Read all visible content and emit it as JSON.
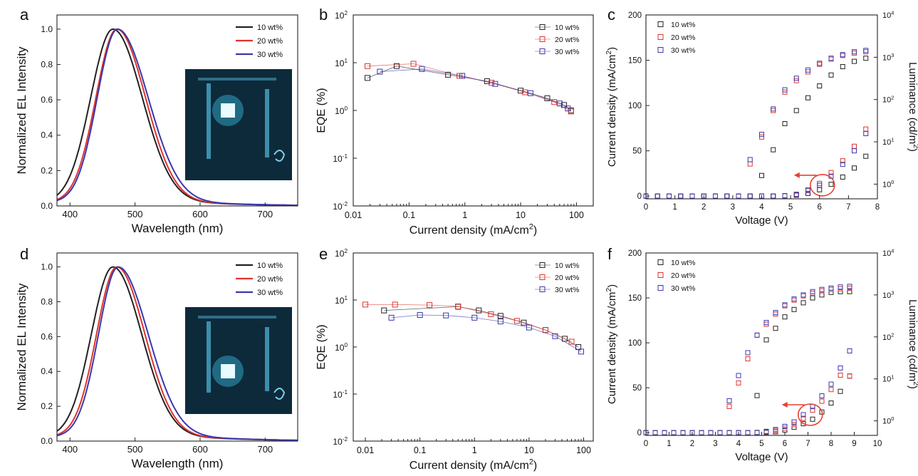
{
  "figure": {
    "background": "#ffffff"
  },
  "colors": {
    "10 wt%": "#222222",
    "20 wt%": "#e0332b",
    "30 wt%": "#3838b0",
    "annotation": "#e8412f"
  },
  "chart_data": [
    {
      "id": "a",
      "panel_label": "a",
      "type": "line",
      "xlabel": "Wavelength (nm)",
      "ylabel": "Normalized EL Intensity",
      "xlim": [
        380,
        750
      ],
      "ylim": [
        0,
        1.08
      ],
      "xticks": [
        400,
        500,
        600,
        700
      ],
      "xtick_labels": [
        "400",
        "500",
        "600",
        "700"
      ],
      "yticks": [
        0,
        0.2,
        0.4,
        0.6,
        0.8,
        1.0
      ],
      "ytick_labels": [
        "0.0",
        "0.2",
        "0.4",
        "0.6",
        "0.8",
        "1.0"
      ],
      "legend": "top-right",
      "inset": "device photo",
      "series": [
        {
          "name": "10 wt%",
          "peak": 466,
          "sigma_left": 34,
          "sigma_right": 45,
          "tail": 0.025
        },
        {
          "name": "20 wt%",
          "peak": 472,
          "sigma_left": 32,
          "sigma_right": 44,
          "tail": 0.025
        },
        {
          "name": "30 wt%",
          "peak": 473,
          "sigma_left": 31,
          "sigma_right": 47,
          "tail": 0.025
        }
      ]
    },
    {
      "id": "b",
      "panel_label": "b",
      "type": "line",
      "xlabel": "Current density (mA/cm",
      "xlabel_sup": "2",
      "xlabel_end": ")",
      "ylabel": "EQE (%)",
      "xscale": "log",
      "yscale": "log",
      "xlim": [
        0.01,
        200
      ],
      "ylim": [
        0.01,
        100
      ],
      "xticks": [
        0.01,
        0.1,
        1,
        10,
        100
      ],
      "xtick_labels": [
        "0.01",
        "0.1",
        "1",
        "10",
        "100"
      ],
      "yticks": [
        0.01,
        0.1,
        1,
        10,
        100
      ],
      "ytick_labels": [
        [
          "10",
          "-2"
        ],
        [
          "10",
          "-1"
        ],
        [
          "10",
          "0"
        ],
        [
          "10",
          "1"
        ],
        [
          "10",
          "2"
        ]
      ],
      "legend": "top-right",
      "series": [
        {
          "name": "10 wt%",
          "x": [
            0.018,
            0.06,
            0.5,
            2.5,
            10,
            30,
            60,
            80
          ],
          "y": [
            4.8,
            8.5,
            5.6,
            4.1,
            2.6,
            1.8,
            1.3,
            1.0
          ]
        },
        {
          "name": "20 wt%",
          "x": [
            0.018,
            0.12,
            0.8,
            3,
            12,
            40,
            80
          ],
          "y": [
            8.5,
            9.5,
            5.3,
            3.8,
            2.4,
            1.5,
            0.95
          ]
        },
        {
          "name": "30 wt%",
          "x": [
            0.03,
            0.17,
            0.9,
            3.5,
            15,
            50,
            70
          ],
          "y": [
            6.5,
            7.4,
            5.3,
            3.6,
            2.3,
            1.4,
            1.1
          ]
        }
      ]
    },
    {
      "id": "c",
      "panel_label": "c",
      "type": "scatter",
      "xlabel": "Voltage (V)",
      "ylabel": "Current density (mA/cm",
      "ylabel_sup": "2",
      "ylabel_end": ")",
      "y2label": "Luminance (cd/m",
      "y2label_sup": "2",
      "y2label_end": ")",
      "xlim": [
        0,
        8
      ],
      "ylim": [
        -3,
        200
      ],
      "y2lim": [
        0.45,
        10000
      ],
      "y2scale": "log",
      "xticks": [
        0,
        1,
        2,
        3,
        4,
        5,
        6,
        7,
        8
      ],
      "xtick_labels": [
        "0",
        "1",
        "2",
        "3",
        "4",
        "5",
        "6",
        "7",
        "8"
      ],
      "yticks": [
        0,
        50,
        100,
        150,
        200
      ],
      "ytick_labels": [
        "0",
        "50",
        "100",
        "150",
        "200"
      ],
      "y2ticks": [
        1,
        10,
        100,
        1000,
        10000
      ],
      "y2tick_labels": [
        [
          "10",
          "0"
        ],
        [
          "10",
          "1"
        ],
        [
          "10",
          "2"
        ],
        [
          "10",
          "3"
        ],
        [
          "10",
          "4"
        ]
      ],
      "legend": "top-left",
      "annotation": {
        "type": "circle-arrow",
        "x": 6.1,
        "y": 12,
        "points_to": "left axis"
      },
      "series": [
        {
          "name": "10 wt%",
          "voltage": [
            0,
            0.4,
            0.8,
            1.2,
            1.6,
            2.0,
            2.4,
            2.8,
            3.2,
            3.6,
            4.0,
            4.4,
            4.8,
            5.2,
            5.6,
            6.0,
            6.4,
            6.8,
            7.2,
            7.6
          ],
          "current_density": [
            0,
            0,
            0,
            0,
            0,
            0,
            0,
            0,
            0,
            0,
            0,
            0,
            0.3,
            1,
            3,
            7,
            13,
            21,
            31,
            44
          ],
          "luminance": [
            null,
            null,
            null,
            null,
            null,
            null,
            null,
            null,
            null,
            null,
            1.6,
            6.5,
            27,
            55,
            110,
            210,
            380,
            600,
            800,
            950
          ]
        },
        {
          "name": "20 wt%",
          "voltage": [
            0,
            0.4,
            0.8,
            1.2,
            1.6,
            2.0,
            2.4,
            2.8,
            3.2,
            3.6,
            4.0,
            4.4,
            4.8,
            5.2,
            5.6,
            6.0,
            6.4,
            6.8,
            7.2,
            7.6
          ],
          "current_density": [
            0,
            0,
            0,
            0,
            0,
            0,
            0,
            0,
            0,
            0,
            0,
            0,
            0.5,
            2,
            7,
            14,
            26,
            39,
            55,
            74
          ],
          "luminance": [
            null,
            null,
            null,
            null,
            null,
            null,
            null,
            null,
            null,
            3.0,
            13,
            55,
            150,
            280,
            450,
            680,
            900,
            1100,
            1250,
            1350
          ]
        },
        {
          "name": "30 wt%",
          "voltage": [
            0,
            0.4,
            0.8,
            1.2,
            1.6,
            2.0,
            2.4,
            2.8,
            3.2,
            3.6,
            4.0,
            4.4,
            4.8,
            5.2,
            5.6,
            6.0,
            6.4,
            6.8,
            7.2,
            7.6
          ],
          "current_density": [
            0,
            0,
            0,
            0,
            0,
            0,
            0,
            0,
            0,
            0,
            0,
            0,
            0.4,
            1.8,
            6,
            12,
            22,
            35,
            50,
            69
          ],
          "luminance": [
            null,
            null,
            null,
            null,
            null,
            null,
            null,
            null,
            null,
            3.8,
            15,
            60,
            170,
            320,
            500,
            720,
            950,
            1150,
            1350,
            1450
          ]
        }
      ]
    },
    {
      "id": "d",
      "panel_label": "d",
      "type": "line",
      "xlabel": "Wavelength (nm)",
      "ylabel": "Normalized EL Intensity",
      "xlim": [
        380,
        750
      ],
      "ylim": [
        0,
        1.08
      ],
      "xticks": [
        400,
        500,
        600,
        700
      ],
      "xtick_labels": [
        "400",
        "500",
        "600",
        "700"
      ],
      "yticks": [
        0,
        0.2,
        0.4,
        0.6,
        0.8,
        1.0
      ],
      "ytick_labels": [
        "0.0",
        "0.2",
        "0.4",
        "0.6",
        "0.8",
        "1.0"
      ],
      "legend": "top-right",
      "inset": "device photo",
      "series": [
        {
          "name": "10 wt%",
          "peak": 466,
          "sigma_left": 33,
          "sigma_right": 44,
          "tail": 0.03
        },
        {
          "name": "20 wt%",
          "peak": 472,
          "sigma_left": 31,
          "sigma_right": 43,
          "tail": 0.03
        },
        {
          "name": "30 wt%",
          "peak": 474,
          "sigma_left": 30,
          "sigma_right": 46,
          "tail": 0.03
        }
      ]
    },
    {
      "id": "e",
      "panel_label": "e",
      "type": "line",
      "xlabel": "Current density (mA/cm",
      "xlabel_sup": "2",
      "xlabel_end": ")",
      "ylabel": "EQE (%)",
      "xscale": "log",
      "yscale": "log",
      "xlim": [
        0.006,
        150
      ],
      "ylim": [
        0.01,
        100
      ],
      "xticks": [
        0.01,
        0.1,
        1,
        10,
        100
      ],
      "xtick_labels": [
        "0.01",
        "0.1",
        "1",
        "10",
        "100"
      ],
      "yticks": [
        0.01,
        0.1,
        1,
        10,
        100
      ],
      "ytick_labels": [
        [
          "10",
          "-2"
        ],
        [
          "10",
          "-1"
        ],
        [
          "10",
          "0"
        ],
        [
          "10",
          "1"
        ],
        [
          "10",
          "2"
        ]
      ],
      "legend": "top-right",
      "series": [
        {
          "name": "10 wt%",
          "x": [
            0.022,
            0.5,
            1.2,
            3,
            8,
            20,
            45,
            80
          ],
          "y": [
            6.0,
            7.2,
            6.0,
            4.6,
            3.3,
            2.3,
            1.5,
            1.0
          ]
        },
        {
          "name": "20 wt%",
          "x": [
            0.01,
            0.035,
            0.15,
            0.5,
            2,
            6,
            20,
            60
          ],
          "y": [
            8.0,
            8.0,
            7.8,
            7.3,
            5.0,
            3.6,
            2.3,
            1.3
          ]
        },
        {
          "name": "30 wt%",
          "x": [
            0.03,
            0.1,
            0.3,
            1,
            3,
            10,
            30,
            90
          ],
          "y": [
            4.2,
            4.8,
            4.7,
            4.2,
            3.5,
            2.6,
            1.7,
            0.8
          ]
        }
      ]
    },
    {
      "id": "f",
      "panel_label": "f",
      "type": "scatter",
      "xlabel": "Voltage (V)",
      "ylabel": "Current density (mA/cm",
      "ylabel_sup": "2",
      "ylabel_end": ")",
      "y2label": "Luminance (cd/m",
      "y2label_sup": "2",
      "y2label_end": ")",
      "xlim": [
        0,
        10
      ],
      "ylim": [
        -3,
        200
      ],
      "y2lim": [
        0.45,
        10000
      ],
      "y2scale": "log",
      "xticks": [
        0,
        1,
        2,
        3,
        4,
        5,
        6,
        7,
        8,
        9,
        10
      ],
      "xtick_labels": [
        "0",
        "1",
        "2",
        "3",
        "4",
        "5",
        "6",
        "7",
        "8",
        "9",
        "10"
      ],
      "yticks": [
        0,
        50,
        100,
        150,
        200
      ],
      "ytick_labels": [
        "0",
        "50",
        "100",
        "150",
        "200"
      ],
      "y2ticks": [
        1,
        10,
        100,
        1000,
        10000
      ],
      "y2tick_labels": [
        [
          "10",
          "0"
        ],
        [
          "10",
          "1"
        ],
        [
          "10",
          "2"
        ],
        [
          "10",
          "3"
        ],
        [
          "10",
          "4"
        ]
      ],
      "legend": "top-left",
      "annotation": {
        "type": "circle-arrow",
        "x": 7.1,
        "y": 20,
        "points_to": "left axis"
      },
      "series": [
        {
          "name": "10 wt%",
          "voltage": [
            0,
            0.4,
            0.8,
            1.2,
            1.6,
            2.0,
            2.4,
            2.8,
            3.2,
            3.6,
            4.0,
            4.4,
            4.8,
            5.2,
            5.6,
            6.0,
            6.4,
            6.8,
            7.2,
            7.6,
            8.0,
            8.4,
            8.8
          ],
          "current_density": [
            0,
            0,
            0,
            0,
            0,
            0,
            0,
            0,
            0,
            0,
            0,
            0,
            0,
            0.3,
            1,
            3,
            6,
            10,
            15,
            23,
            33,
            46,
            63
          ],
          "luminance": [
            null,
            null,
            null,
            null,
            null,
            null,
            null,
            null,
            null,
            null,
            null,
            null,
            4.0,
            85,
            160,
            300,
            450,
            650,
            850,
            1000,
            1150,
            1200,
            1200
          ]
        },
        {
          "name": "20 wt%",
          "voltage": [
            0,
            0.4,
            0.8,
            1.2,
            1.6,
            2.0,
            2.4,
            2.8,
            3.2,
            3.6,
            4.0,
            4.4,
            4.8,
            5.2,
            5.6,
            6.0,
            6.4,
            6.8,
            7.2,
            7.6,
            8.0,
            8.4,
            8.8
          ],
          "current_density": [
            0,
            0,
            0,
            0,
            0,
            0,
            0,
            0,
            0,
            0,
            0,
            0,
            0.2,
            1,
            2.5,
            5,
            9,
            16,
            25,
            35,
            48,
            64,
            63
          ],
          "luminance": [
            null,
            null,
            null,
            null,
            null,
            null,
            null,
            null,
            null,
            2.2,
            8,
            30,
            110,
            200,
            350,
            550,
            750,
            950,
            1100,
            1250,
            1350,
            1400,
            1450
          ]
        },
        {
          "name": "30 wt%",
          "voltage": [
            0,
            0.4,
            0.8,
            1.2,
            1.6,
            2.0,
            2.4,
            2.8,
            3.2,
            3.6,
            4.0,
            4.4,
            4.8,
            5.2,
            5.6,
            6.0,
            6.4,
            6.8,
            7.2,
            7.6,
            8.0,
            8.4,
            8.8
          ],
          "current_density": [
            0,
            0,
            0,
            0,
            0,
            0,
            0,
            0,
            0,
            0,
            0,
            0,
            0.3,
            1.5,
            3.5,
            7,
            12,
            20,
            29,
            41,
            54,
            72,
            91
          ],
          "luminance": [
            null,
            null,
            null,
            null,
            null,
            null,
            null,
            null,
            null,
            3.0,
            12,
            42,
            110,
            220,
            380,
            580,
            800,
            1000,
            1200,
            1350,
            1450,
            1550,
            1600
          ]
        }
      ]
    }
  ]
}
